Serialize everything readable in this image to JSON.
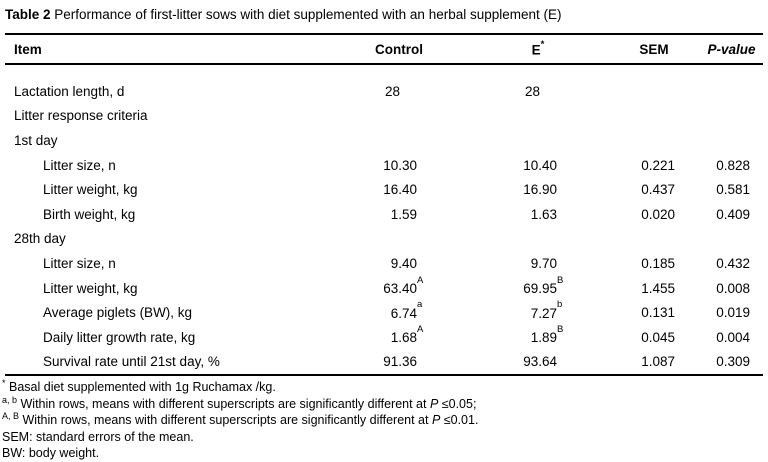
{
  "page": {
    "background": "#ffffff",
    "text_color": "#000000",
    "rule_color": "#000000"
  },
  "title": {
    "label": "Table 2",
    "caption": " Performance of first-litter sows with diet supplemented with an herbal supplement (E)"
  },
  "table": {
    "header": {
      "item": "Item",
      "control": "Control",
      "e": "E",
      "e_sup": "*",
      "sem": "SEM",
      "p_value": "P-value"
    },
    "rows": [
      {
        "item": "Lactation length, d",
        "indent": false,
        "control": "28",
        "e": "28",
        "sem": "",
        "p": ""
      },
      {
        "item": "Litter response criteria",
        "indent": false
      },
      {
        "item": "1st day",
        "indent": false
      },
      {
        "item": "Litter size, n",
        "indent": true,
        "control": "10.30",
        "e": "10.40",
        "sem": "0.221",
        "p": "0.828"
      },
      {
        "item": "Litter weight, kg",
        "indent": true,
        "control": "16.40",
        "e": "16.90",
        "sem": "0.437",
        "p": "0.581"
      },
      {
        "item": "Birth weight, kg",
        "indent": true,
        "control": "1.59",
        "e": "1.63",
        "sem": "0.020",
        "p": "0.409"
      },
      {
        "item": "28th day",
        "indent": false
      },
      {
        "item": "Litter size, n",
        "indent": true,
        "control": "9.40",
        "e": "9.70",
        "sem": "0.185",
        "p": "0.432"
      },
      {
        "item": "Litter weight, kg",
        "indent": true,
        "control": "63.40",
        "control_sup": "A",
        "e": "69.95",
        "e_sup": "B",
        "sem": "1.455",
        "p": "0.008"
      },
      {
        "item": "Average piglets (BW), kg",
        "indent": true,
        "control": "6.74",
        "control_sup": "a",
        "e": "7.27",
        "e_sup": "b",
        "sem": "0.131",
        "p": "0.019"
      },
      {
        "item": "Daily litter growth rate, kg",
        "indent": true,
        "control": "1.68",
        "control_sup": "A",
        "e": "1.89",
        "e_sup": "B",
        "sem": "0.045",
        "p": "0.004"
      },
      {
        "item": "Survival rate until 21st day, %",
        "indent": true,
        "control": "91.36",
        "e": "93.64",
        "sem": "1.087",
        "p": "0.309"
      }
    ]
  },
  "footnotes": [
    {
      "sup": "*",
      "segments": [
        {
          "text": "Basal diet supplemented with 1g Ruchamax /kg."
        }
      ]
    },
    {
      "sup": "a, b",
      "segments": [
        {
          "text": "Within rows, means with different superscripts are significantly different at "
        },
        {
          "italic": "P"
        },
        {
          "text": " ≤0.05;"
        }
      ]
    },
    {
      "sup": "A, B",
      "segments": [
        {
          "text": "Within rows, means with different superscripts are significantly different at "
        },
        {
          "italic": "P"
        },
        {
          "text": " ≤0.01."
        }
      ]
    },
    {
      "segments": [
        {
          "text": "SEM: standard errors of the mean."
        }
      ]
    },
    {
      "segments": [
        {
          "text": "BW: body weight."
        }
      ]
    }
  ]
}
